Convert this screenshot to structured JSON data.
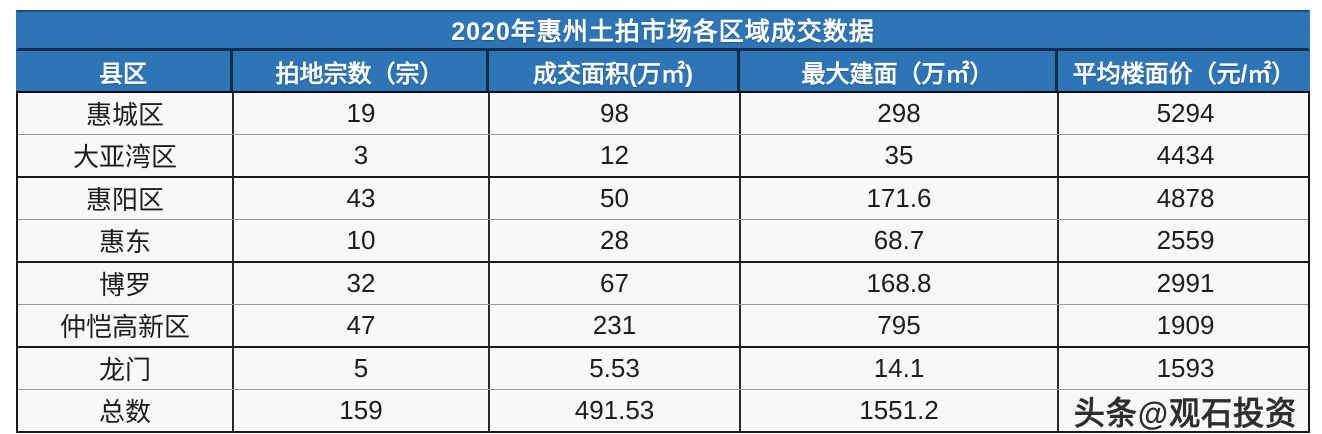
{
  "table": {
    "title": "2020年惠州土拍市场各区域成交数据",
    "columns": [
      "县区",
      "拍地宗数（宗）",
      "成交面积(万㎡)",
      "最大建面（万㎡）",
      "平均楼面价（元/㎡）"
    ],
    "rows": [
      [
        "惠城区",
        "19",
        "98",
        "298",
        "5294"
      ],
      [
        "大亚湾区",
        "3",
        "12",
        "35",
        "4434"
      ],
      [
        "惠阳区",
        "43",
        "50",
        "171.6",
        "4878"
      ],
      [
        "惠东",
        "10",
        "28",
        "68.7",
        "2559"
      ],
      [
        "博罗",
        "32",
        "67",
        "168.8",
        "2991"
      ],
      [
        "仲恺高新区",
        "47",
        "231",
        "795",
        "1909"
      ],
      [
        "龙门",
        "5",
        "5.53",
        "14.1",
        "1593"
      ],
      [
        "总数",
        "159",
        "491.53",
        "1551.2",
        ""
      ]
    ]
  },
  "watermark": "头条@观石投资",
  "colors": {
    "header_blue": "#2e75b6",
    "header_divider_navy": "#0f2d4d",
    "header_text": "#ffffff",
    "body_bg": "#f8f8f9",
    "body_text": "#1d1d1d",
    "border_dark": "#1a1a1a",
    "border_light": "#999999",
    "watermark_text": "#2e2e2e"
  },
  "chart_data": {
    "type": "table",
    "title": "2020年惠州土拍市场各区域成交数据",
    "categories": [
      "惠城区",
      "大亚湾区",
      "惠阳区",
      "惠东",
      "博罗",
      "仲恺高新区",
      "龙门",
      "总数"
    ],
    "series": [
      {
        "name": "拍地宗数（宗）",
        "values": [
          19,
          3,
          43,
          10,
          32,
          47,
          5,
          159
        ]
      },
      {
        "name": "成交面积(万㎡)",
        "values": [
          98,
          12,
          50,
          28,
          67,
          231,
          5.53,
          491.53
        ]
      },
      {
        "name": "最大建面（万㎡）",
        "values": [
          298,
          35,
          171.6,
          68.7,
          168.8,
          795,
          14.1,
          1551.2
        ]
      },
      {
        "name": "平均楼面价（元/㎡）",
        "values": [
          5294,
          4434,
          4878,
          2559,
          2991,
          1909,
          1593,
          null
        ]
      }
    ],
    "notes": "bottom-right cell of 总数 row is covered by watermark 头条@观石投资"
  }
}
